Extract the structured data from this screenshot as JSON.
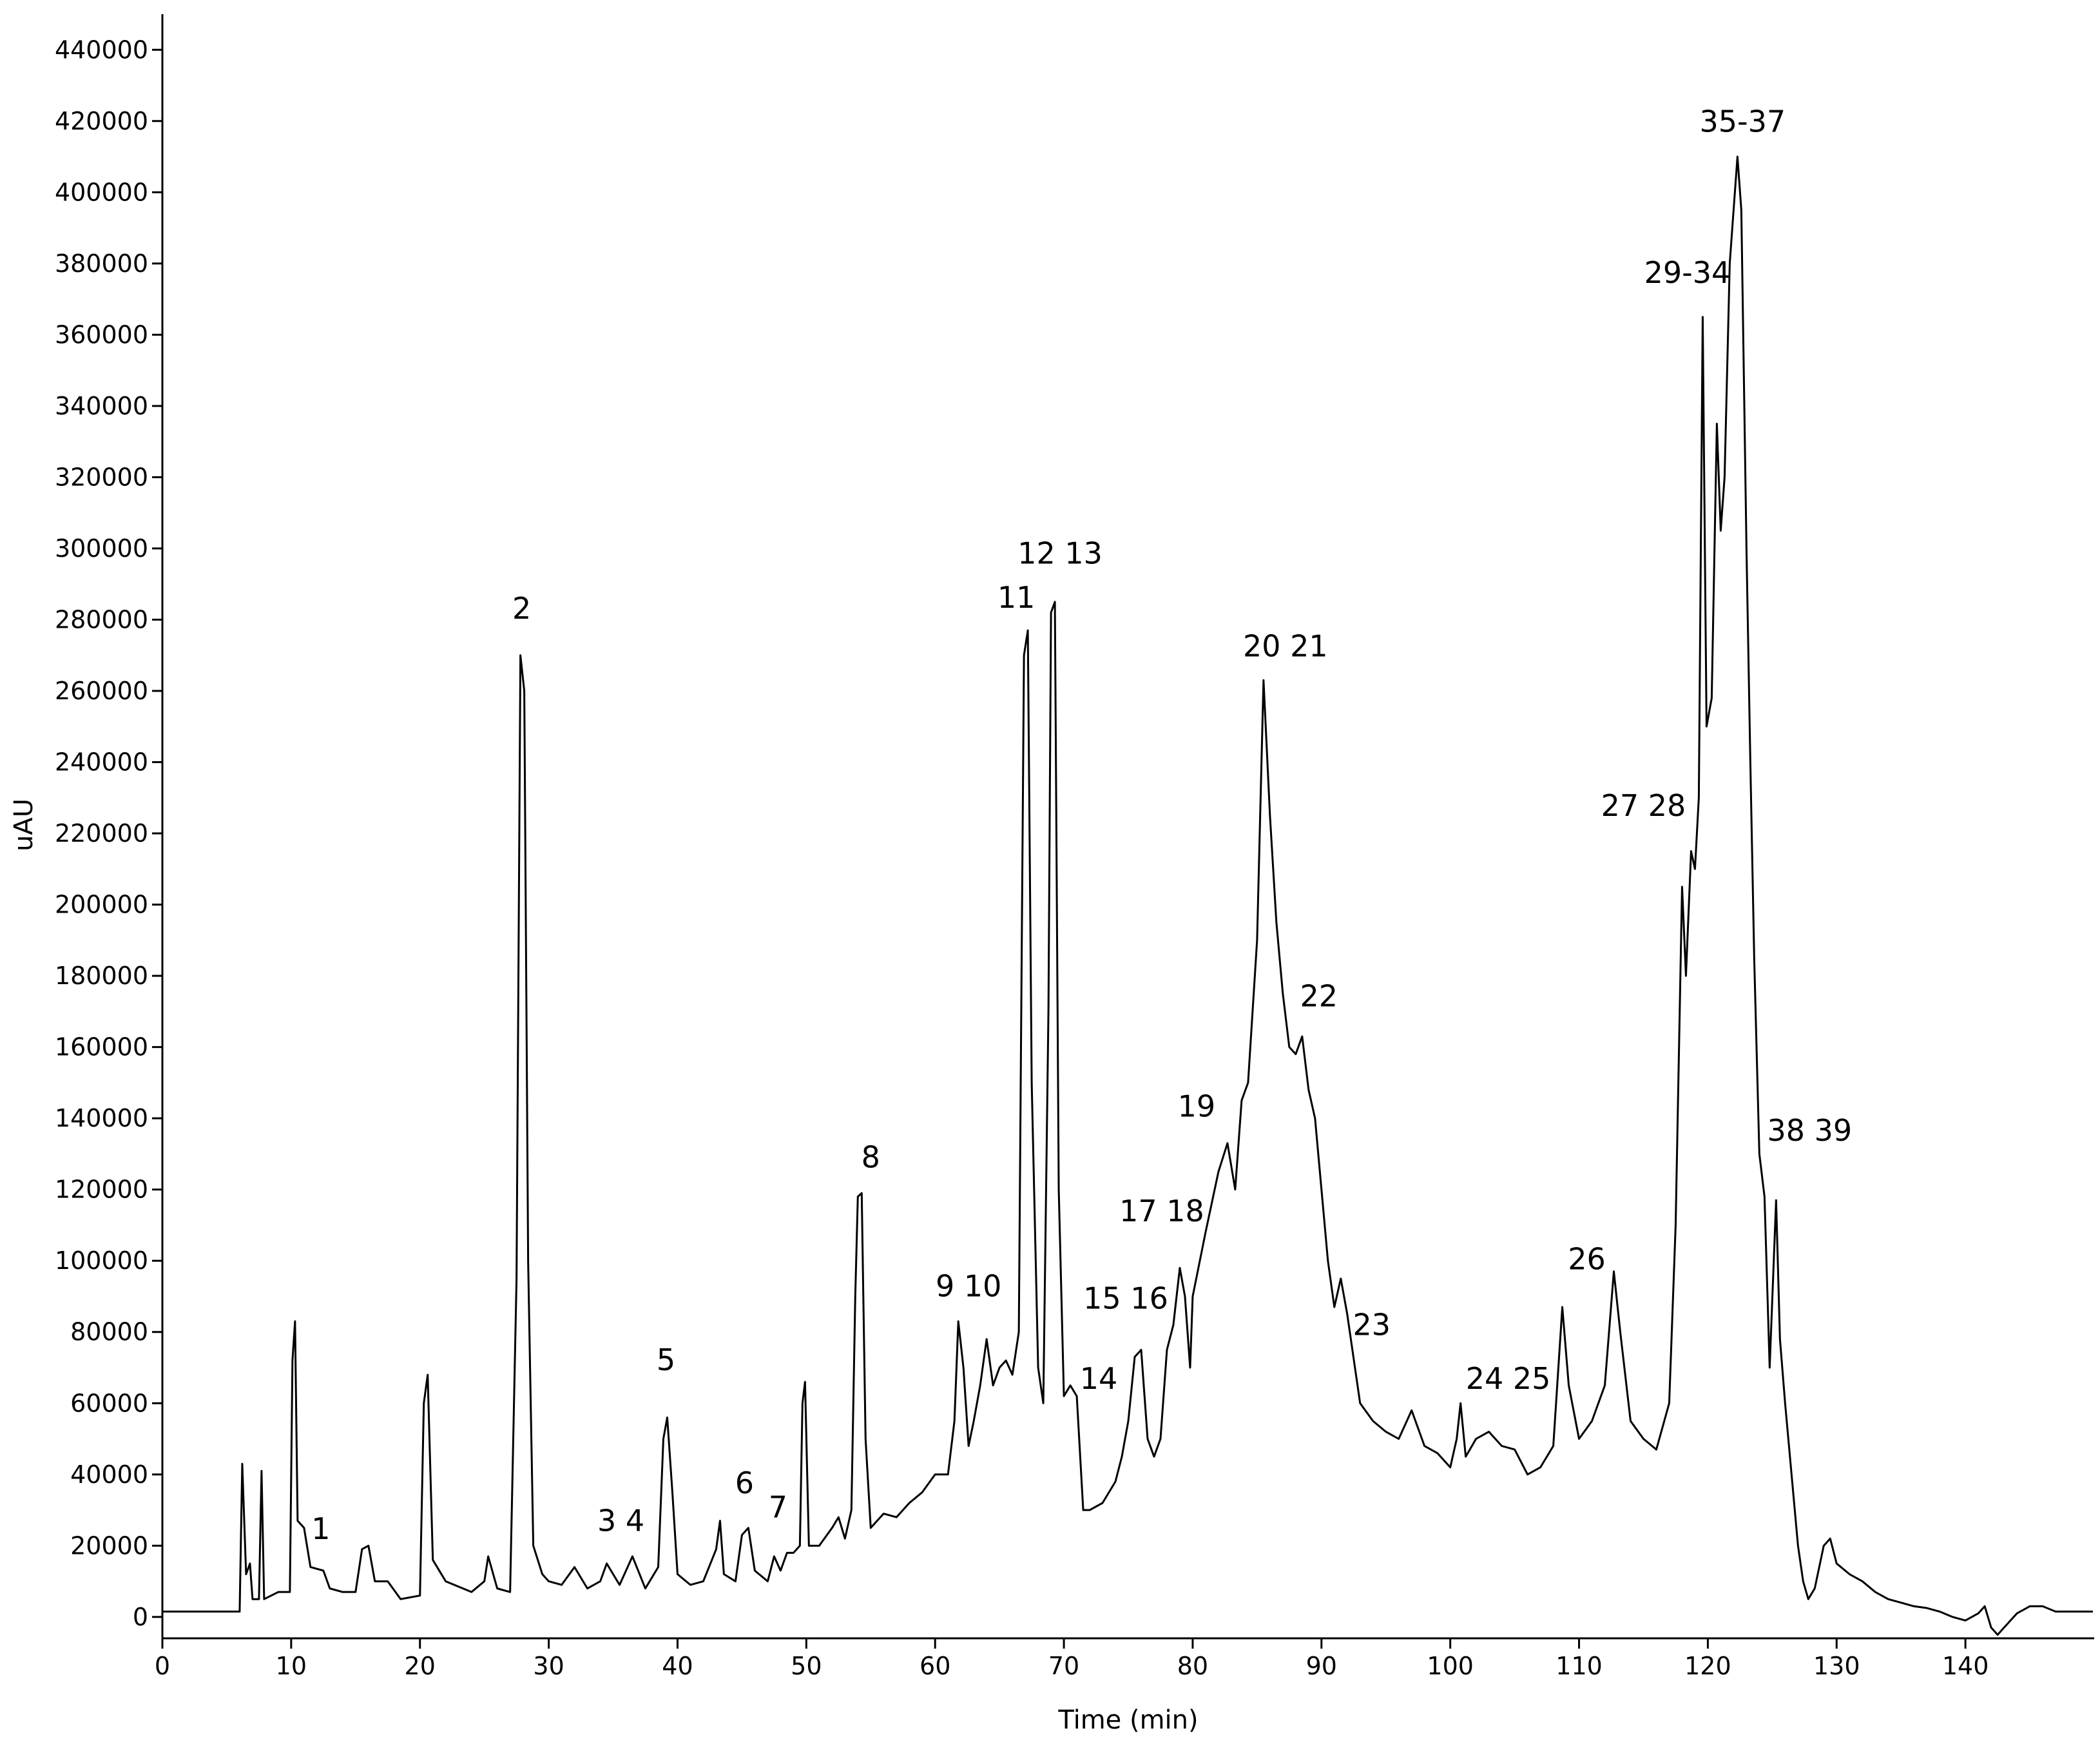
{
  "chart_data": {
    "type": "line",
    "x_label": "Time (min)",
    "y_label": "uAU",
    "color": "#000000",
    "xlim": [
      0,
      150
    ],
    "ylim": [
      -6000,
      450000
    ],
    "xticks": [
      0,
      10,
      20,
      30,
      40,
      50,
      60,
      70,
      80,
      90,
      100,
      110,
      120,
      130,
      140
    ],
    "yticks": [
      0,
      20000,
      40000,
      60000,
      80000,
      100000,
      120000,
      140000,
      160000,
      180000,
      200000,
      220000,
      240000,
      260000,
      280000,
      300000,
      320000,
      340000,
      360000,
      380000,
      400000,
      420000,
      440000
    ],
    "x": [
      0,
      5.8,
      6,
      6.2,
      6.5,
      6.8,
      7,
      7.5,
      7.7,
      7.9,
      9,
      9.9,
      10.1,
      10.3,
      10.5,
      11,
      11.5,
      12.5,
      13,
      14,
      15,
      15.5,
      16,
      16.5,
      17.5,
      18.5,
      20,
      20.3,
      20.6,
      21,
      22,
      24,
      25,
      25.3,
      26,
      27,
      27.5,
      27.8,
      28.1,
      28.4,
      28.8,
      29.5,
      30,
      31,
      32,
      33,
      34,
      34.5,
      35.5,
      36.5,
      37.5,
      38.5,
      38.9,
      39.2,
      39.6,
      40,
      41,
      42,
      43,
      43.3,
      43.6,
      44.5,
      45,
      45.5,
      46,
      47,
      47.5,
      48,
      48.5,
      49,
      49.5,
      49.7,
      49.9,
      50.2,
      51,
      52,
      52.5,
      53,
      53.5,
      53.8,
      54,
      54.3,
      54.6,
      55,
      56,
      57,
      58,
      59,
      60,
      61,
      61.5,
      61.8,
      62.2,
      62.6,
      63,
      63.5,
      64,
      64.5,
      65,
      65.5,
      66,
      66.5,
      66.9,
      67.2,
      67.5,
      68,
      68.4,
      68.8,
      69,
      69.3,
      69.6,
      70,
      70.5,
      71,
      71.5,
      72,
      73,
      74,
      74.5,
      75,
      75.5,
      76,
      76.5,
      77,
      77.5,
      78,
      78.5,
      79,
      79.4,
      79.8,
      80,
      81,
      82,
      82.7,
      83.3,
      83.8,
      84.3,
      85,
      85.5,
      86,
      86.5,
      87,
      87.5,
      88,
      88.5,
      89,
      89.5,
      90,
      90.5,
      91,
      91.5,
      92,
      93,
      94,
      95,
      96,
      97,
      98,
      99,
      100,
      100.5,
      100.8,
      101.2,
      102,
      103,
      104,
      105,
      106,
      107,
      108,
      108.7,
      109.2,
      110,
      111,
      112,
      112.7,
      113.2,
      114,
      115,
      116,
      117,
      117.5,
      118,
      118.3,
      118.7,
      119,
      119.3,
      119.6,
      119.9,
      120.3,
      120.7,
      121,
      121.3,
      121.7,
      122,
      122.3,
      122.6,
      123,
      123.3,
      123.6,
      124,
      124.4,
      124.8,
      125.3,
      125.6,
      126,
      126.5,
      127,
      127.4,
      127.8,
      128.3,
      129,
      129.5,
      130,
      131,
      132,
      133,
      134,
      135,
      136,
      137,
      138,
      139,
      140,
      141,
      141.5,
      142,
      142.5,
      143,
      144,
      145,
      146,
      147,
      149.9
    ],
    "values": [
      1500,
      1500,
      1500,
      43000,
      12000,
      15000,
      5000,
      5000,
      41000,
      5000,
      7000,
      7000,
      72000,
      83000,
      27000,
      25000,
      14000,
      13000,
      8000,
      7000,
      7000,
      19000,
      20000,
      10000,
      10000,
      5000,
      6000,
      60000,
      68000,
      16000,
      10000,
      7000,
      10000,
      17000,
      8000,
      7000,
      95000,
      270000,
      260000,
      100000,
      20000,
      12000,
      10000,
      9000,
      14000,
      8000,
      10000,
      15000,
      9000,
      17000,
      8000,
      14000,
      50000,
      56000,
      35000,
      12000,
      9000,
      10000,
      19000,
      27000,
      12000,
      10000,
      23000,
      25000,
      13000,
      10000,
      17000,
      13000,
      18000,
      18000,
      20000,
      60000,
      66000,
      20000,
      20000,
      25000,
      28000,
      22000,
      30000,
      90000,
      118000,
      119000,
      50000,
      25000,
      29000,
      28000,
      32000,
      35000,
      40000,
      40000,
      55000,
      83000,
      70000,
      48000,
      55000,
      65000,
      78000,
      65000,
      70000,
      72000,
      68000,
      80000,
      270000,
      277000,
      150000,
      70000,
      60000,
      170000,
      282000,
      285000,
      120000,
      62000,
      65000,
      62000,
      30000,
      30000,
      32000,
      38000,
      45000,
      55000,
      73000,
      75000,
      50000,
      45000,
      50000,
      75000,
      82000,
      98000,
      90000,
      70000,
      90000,
      108000,
      125000,
      133000,
      120000,
      145000,
      150000,
      190000,
      263000,
      225000,
      195000,
      175000,
      160000,
      158000,
      163000,
      148000,
      140000,
      120000,
      100000,
      87000,
      95000,
      85000,
      60000,
      55000,
      52000,
      50000,
      58000,
      48000,
      46000,
      42000,
      50000,
      60000,
      45000,
      50000,
      52000,
      48000,
      47000,
      40000,
      42000,
      48000,
      87000,
      65000,
      50000,
      55000,
      65000,
      97000,
      80000,
      55000,
      50000,
      47000,
      60000,
      110000,
      205000,
      180000,
      215000,
      210000,
      230000,
      365000,
      250000,
      258000,
      335000,
      305000,
      320000,
      380000,
      395000,
      410000,
      395000,
      300000,
      240000,
      185000,
      130000,
      118000,
      70000,
      117000,
      78000,
      60000,
      40000,
      20000,
      10000,
      5000,
      8000,
      20000,
      22000,
      15000,
      12000,
      10000,
      7000,
      5000,
      4000,
      3000,
      2500,
      1500,
      0,
      -1000,
      1000,
      3000,
      -3000,
      -5000,
      -3000,
      1000,
      3000,
      3000,
      1500,
      1500
    ],
    "annotations": [
      {
        "text": "1",
        "x": 12.3,
        "y": 21850
      },
      {
        "text": "2",
        "x": 27.9,
        "y": 280300
      },
      {
        "text": "3 4",
        "x": 35.6,
        "y": 24100
      },
      {
        "text": "5",
        "x": 39.1,
        "y": 69300
      },
      {
        "text": "6",
        "x": 45.2,
        "y": 34700
      },
      {
        "text": "7",
        "x": 47.8,
        "y": 27900
      },
      {
        "text": "8",
        "x": 55.0,
        "y": 126200
      },
      {
        "text": "9 10",
        "x": 62.6,
        "y": 90000
      },
      {
        "text": "11",
        "x": 66.3,
        "y": 283300
      },
      {
        "text": "12 13",
        "x": 69.7,
        "y": 295700
      },
      {
        "text": "14",
        "x": 72.7,
        "y": 64000
      },
      {
        "text": "15 16",
        "x": 74.8,
        "y": 86600
      },
      {
        "text": "17 18",
        "x": 77.6,
        "y": 111100
      },
      {
        "text": "19",
        "x": 80.3,
        "y": 140500
      },
      {
        "text": "20 21",
        "x": 87.2,
        "y": 269700
      },
      {
        "text": "22",
        "x": 89.8,
        "y": 171400
      },
      {
        "text": "23",
        "x": 93.9,
        "y": 79100
      },
      {
        "text": "24 25",
        "x": 104.5,
        "y": 64000
      },
      {
        "text": "26",
        "x": 110.6,
        "y": 97600
      },
      {
        "text": "27 28",
        "x": 115.0,
        "y": 224900
      },
      {
        "text": "29-34",
        "x": 118.4,
        "y": 374500
      },
      {
        "text": "35-37",
        "x": 122.7,
        "y": 417000
      },
      {
        "text": "38 39",
        "x": 127.9,
        "y": 133700
      }
    ]
  }
}
